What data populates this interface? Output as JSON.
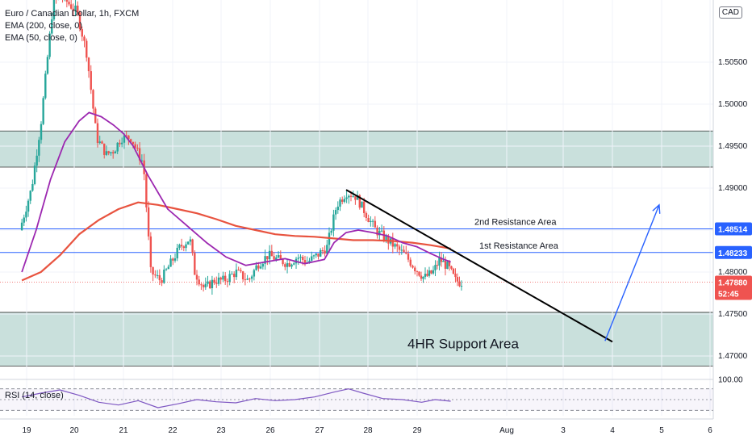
{
  "legend": {
    "symbol": "Euro / Canadian Dollar, 1h, FXCM",
    "ema200": "EMA (200, close, 0)",
    "ema50": "EMA (50, close, 0)"
  },
  "currency_badge": "CAD",
  "rsi_label": "RSI (14, close)",
  "countdown": "52:45",
  "colors": {
    "up": "#26a69a",
    "down": "#ef5350",
    "ema200": "#e8533f",
    "ema50": "#9c27b0",
    "zone": "#c9e0dc",
    "resistance_line": "#2962ff",
    "price_badge": "#ef5350",
    "level_badge": "#2962ff",
    "trendline": "#000000",
    "arrow": "#2962ff",
    "rsi_line": "#7e57c2"
  },
  "chart_data": {
    "type": "candlestick",
    "y_axis": {
      "ticks": [
        "1.47000",
        "1.47500",
        "1.48000",
        "1.48500",
        "1.49000",
        "1.49500",
        "1.50000",
        "1.50500"
      ],
      "range": [
        1.4676,
        1.5124
      ]
    },
    "x_axis": {
      "ticks": [
        "19",
        "20",
        "21",
        "22",
        "23",
        "26",
        "27",
        "28",
        "29",
        "Aug",
        "3",
        "4",
        "5",
        "6"
      ]
    },
    "candle_path": [
      [
        18.9,
        1.485
      ],
      [
        19.15,
        1.49
      ],
      [
        19.35,
        1.498
      ],
      [
        19.6,
        1.512
      ],
      [
        19.75,
        1.513
      ],
      [
        20.1,
        1.511
      ],
      [
        20.3,
        1.506
      ],
      [
        20.5,
        1.496
      ],
      [
        20.7,
        1.494
      ],
      [
        20.85,
        1.4945
      ],
      [
        21.0,
        1.496
      ],
      [
        21.2,
        1.496
      ],
      [
        21.35,
        1.494
      ],
      [
        21.45,
        1.493
      ],
      [
        21.6,
        1.48
      ],
      [
        21.8,
        1.479
      ],
      [
        22.0,
        1.481
      ],
      [
        22.2,
        1.483
      ],
      [
        22.4,
        1.484
      ],
      [
        22.5,
        1.48
      ],
      [
        22.7,
        1.478
      ],
      [
        22.9,
        1.479
      ],
      [
        23.1,
        1.479
      ],
      [
        23.35,
        1.48
      ],
      [
        23.6,
        1.479
      ],
      [
        23.8,
        1.481
      ],
      [
        24.0,
        1.482
      ],
      [
        24.2,
        1.4815
      ],
      [
        24.4,
        1.481
      ],
      [
        24.6,
        1.4818
      ],
      [
        24.8,
        1.4812
      ],
      [
        25.0,
        1.482
      ],
      [
        25.2,
        1.483
      ],
      [
        25.4,
        1.488
      ],
      [
        25.6,
        1.4895
      ],
      [
        25.8,
        1.489
      ],
      [
        26.0,
        1.487
      ],
      [
        26.2,
        1.485
      ],
      [
        26.4,
        1.484
      ],
      [
        26.6,
        1.483
      ],
      [
        26.8,
        1.482
      ],
      [
        27.0,
        1.4805
      ],
      [
        27.2,
        1.4793
      ],
      [
        27.4,
        1.48
      ],
      [
        27.55,
        1.4815
      ],
      [
        27.75,
        1.4805
      ],
      [
        27.9,
        1.479
      ],
      [
        28.0,
        1.4788
      ]
    ],
    "ema200": [
      [
        18.9,
        1.479
      ],
      [
        19.3,
        1.48
      ],
      [
        19.7,
        1.482
      ],
      [
        20.1,
        1.4845
      ],
      [
        20.5,
        1.4862
      ],
      [
        20.9,
        1.4875
      ],
      [
        21.3,
        1.4883
      ],
      [
        21.7,
        1.488
      ],
      [
        22.1,
        1.4875
      ],
      [
        22.5,
        1.487
      ],
      [
        22.9,
        1.4863
      ],
      [
        23.3,
        1.4855
      ],
      [
        23.7,
        1.485
      ],
      [
        24.1,
        1.4845
      ],
      [
        24.5,
        1.4843
      ],
      [
        24.9,
        1.4842
      ],
      [
        25.3,
        1.484
      ],
      [
        25.7,
        1.4838
      ],
      [
        26.1,
        1.4838
      ],
      [
        26.5,
        1.4837
      ],
      [
        26.9,
        1.4835
      ],
      [
        27.3,
        1.4832
      ],
      [
        27.75,
        1.4828
      ]
    ],
    "ema50": [
      [
        18.9,
        1.48
      ],
      [
        19.2,
        1.485
      ],
      [
        19.5,
        1.491
      ],
      [
        19.8,
        1.4955
      ],
      [
        20.1,
        1.498
      ],
      [
        20.3,
        1.499
      ],
      [
        20.55,
        1.4985
      ],
      [
        20.8,
        1.4975
      ],
      [
        21.0,
        1.4965
      ],
      [
        21.2,
        1.495
      ],
      [
        21.5,
        1.4915
      ],
      [
        21.9,
        1.4875
      ],
      [
        22.3,
        1.4855
      ],
      [
        22.7,
        1.4835
      ],
      [
        23.1,
        1.4818
      ],
      [
        23.5,
        1.4808
      ],
      [
        23.9,
        1.4812
      ],
      [
        24.3,
        1.4816
      ],
      [
        24.7,
        1.481
      ],
      [
        25.1,
        1.4815
      ],
      [
        25.3,
        1.4835
      ],
      [
        25.55,
        1.4847
      ],
      [
        25.8,
        1.485
      ],
      [
        26.1,
        1.4847
      ],
      [
        26.4,
        1.4843
      ],
      [
        26.7,
        1.4835
      ],
      [
        27.0,
        1.483
      ],
      [
        27.3,
        1.4822
      ],
      [
        27.6,
        1.4815
      ],
      [
        27.75,
        1.4812
      ]
    ],
    "support_zone": [
      1.4688,
      1.4752
    ],
    "resistance_zone": [
      1.4925,
      1.4968
    ],
    "levels": [
      {
        "label": "2nd Resistance  Area",
        "value": 1.48514,
        "badge": "1.48514"
      },
      {
        "label": "1st Resistance  Area",
        "value": 1.48233,
        "badge": "1.48233"
      }
    ],
    "current_price": {
      "value": 1.4788,
      "badge": "1.47880"
    },
    "zone_labels": {
      "support": "4HR Support Area"
    },
    "trendline": [
      [
        25.55,
        1.4898
      ],
      [
        31.0,
        1.4717
      ]
    ],
    "projection_arrow": [
      [
        30.85,
        1.4718
      ],
      [
        31.95,
        1.488
      ]
    ],
    "rsi": {
      "levels": [
        70,
        50,
        30
      ],
      "values": [
        [
          18.9,
          55
        ],
        [
          19.3,
          62
        ],
        [
          19.7,
          68
        ],
        [
          20.1,
          58
        ],
        [
          20.5,
          45
        ],
        [
          20.9,
          40
        ],
        [
          21.3,
          48
        ],
        [
          21.7,
          35
        ],
        [
          22.1,
          42
        ],
        [
          22.5,
          50
        ],
        [
          22.9,
          46
        ],
        [
          23.3,
          44
        ],
        [
          23.7,
          52
        ],
        [
          24.1,
          48
        ],
        [
          24.5,
          50
        ],
        [
          24.9,
          55
        ],
        [
          25.3,
          64
        ],
        [
          25.6,
          70
        ],
        [
          25.9,
          62
        ],
        [
          26.3,
          52
        ],
        [
          26.7,
          50
        ],
        [
          27.1,
          45
        ],
        [
          27.4,
          50
        ],
        [
          27.75,
          47
        ]
      ]
    }
  }
}
